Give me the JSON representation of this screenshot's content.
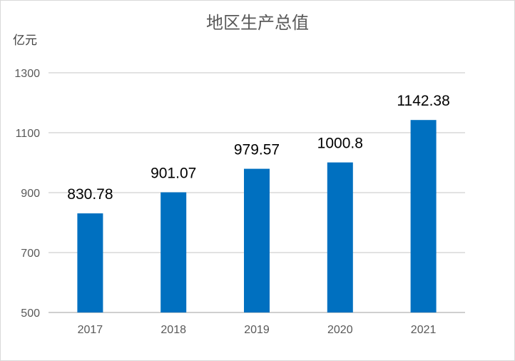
{
  "chart_data": {
    "type": "bar",
    "title": "地区生产总值",
    "ylabel": "亿元",
    "xlabel": "",
    "categories": [
      "2017",
      "2018",
      "2019",
      "2020",
      "2021"
    ],
    "values": [
      830.78,
      901.07,
      979.57,
      1000.8,
      1142.38
    ],
    "value_labels": [
      "830.78",
      "901.07",
      "979.57",
      "1000.8",
      "1142.38"
    ],
    "ylim": [
      500,
      1300
    ],
    "yticks": [
      "500",
      "700",
      "900",
      "1100",
      "1300"
    ],
    "grid": true,
    "legend": "none",
    "colors": {
      "bar": "#0070C0",
      "grid": "#d9d9d9",
      "axis": "#bfbfbf"
    }
  }
}
